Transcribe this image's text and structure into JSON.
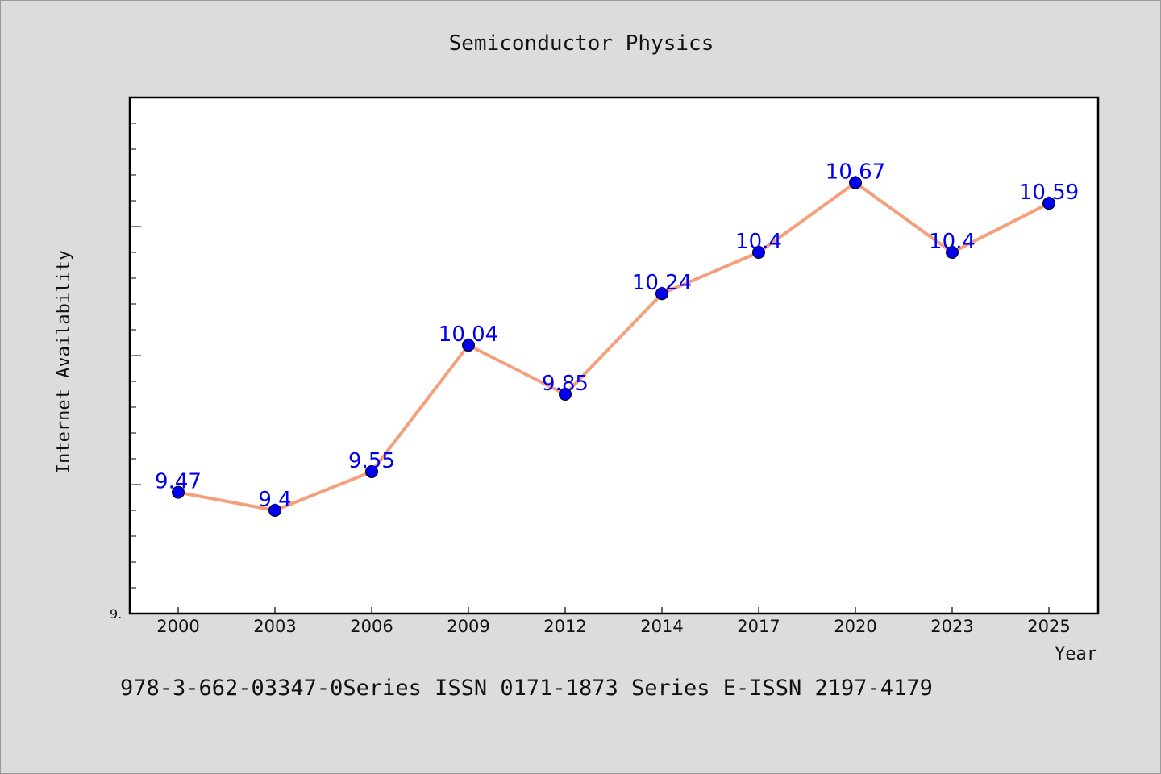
{
  "chart_data": {
    "type": "line",
    "title": "Semiconductor Physics",
    "xlabel": "Year",
    "ylabel": "Internet Availability",
    "categories": [
      "2000",
      "2003",
      "2006",
      "2009",
      "2012",
      "2014",
      "2017",
      "2020",
      "2023",
      "2025"
    ],
    "series": [
      {
        "values": [
          9.47,
          9.4,
          9.55,
          10.04,
          9.85,
          10.24,
          10.4,
          10.67,
          10.4,
          10.59
        ],
        "data_labels": [
          "9.47",
          "9.4",
          "9.55",
          "10.04",
          "9.85",
          "10.24",
          "10.4",
          "10.67",
          "10.4",
          "10.59"
        ],
        "line_color": "#f4a07c",
        "marker_color": "#0000ee",
        "label_color": "#0000ee"
      }
    ],
    "ylim": [
      9.0,
      11.0
    ],
    "y_tick_label": "9.",
    "grid": false,
    "legend": "none",
    "footnote": "978-3-662-03347-0Series ISSN 0171-1873 Series E-ISSN 2197-4179"
  }
}
